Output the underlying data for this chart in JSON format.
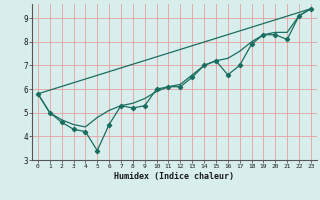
{
  "xlabel": "Humidex (Indice chaleur)",
  "bg_color": "#d8eeed",
  "grid_color": "#e8a0a0",
  "line_color": "#1a6e60",
  "xlim": [
    -0.5,
    23.5
  ],
  "ylim": [
    3,
    9.6
  ],
  "xticks": [
    0,
    1,
    2,
    3,
    4,
    5,
    6,
    7,
    8,
    9,
    10,
    11,
    12,
    13,
    14,
    15,
    16,
    17,
    18,
    19,
    20,
    21,
    22,
    23
  ],
  "yticks": [
    3,
    4,
    5,
    6,
    7,
    8,
    9
  ],
  "line1_x": [
    0,
    1,
    2,
    3,
    4,
    5,
    6,
    7,
    8,
    9,
    10,
    11,
    12,
    13,
    14,
    15,
    16,
    17,
    18,
    19,
    20,
    21,
    22,
    23
  ],
  "line1_y": [
    5.8,
    5.0,
    4.6,
    4.3,
    4.2,
    3.4,
    4.5,
    5.3,
    5.2,
    5.3,
    6.0,
    6.1,
    6.1,
    6.5,
    7.0,
    7.2,
    6.6,
    7.0,
    7.9,
    8.3,
    8.3,
    8.1,
    9.1,
    9.4
  ],
  "line2_x": [
    0,
    1,
    2,
    3,
    4,
    5,
    6,
    7,
    8,
    9,
    10,
    11,
    12,
    13,
    14,
    15,
    16,
    17,
    18,
    19,
    20,
    21,
    22,
    23
  ],
  "line2_y": [
    5.8,
    5.0,
    4.7,
    4.5,
    4.4,
    4.8,
    5.1,
    5.3,
    5.4,
    5.6,
    5.9,
    6.1,
    6.2,
    6.6,
    7.0,
    7.2,
    7.3,
    7.6,
    8.0,
    8.3,
    8.4,
    8.4,
    9.1,
    9.4
  ],
  "line3_x": [
    0,
    23
  ],
  "line3_y": [
    5.8,
    9.4
  ]
}
